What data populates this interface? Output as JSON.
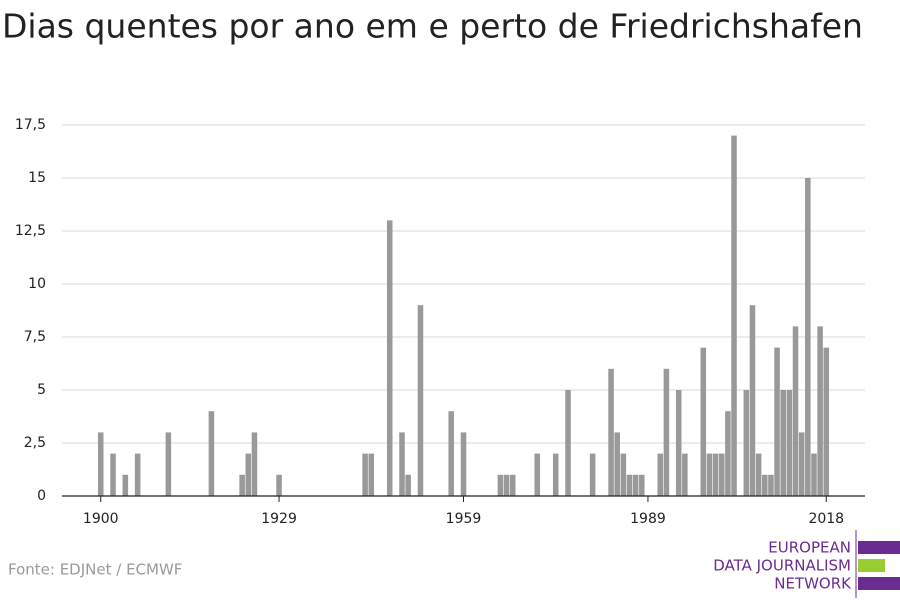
{
  "chart_data": {
    "type": "bar",
    "title": "Dias quentes por ano em e perto de Friedrichshafen",
    "source": "Fonte: EDJNet / ECMWF",
    "logo": [
      "EUROPEAN",
      "DATA JOURNALISM",
      "NETWORK"
    ],
    "color": "#999999",
    "grid": true,
    "x": [
      1900,
      1901,
      1902,
      1903,
      1904,
      1905,
      1906,
      1907,
      1908,
      1909,
      1910,
      1911,
      1912,
      1913,
      1914,
      1915,
      1916,
      1917,
      1918,
      1919,
      1920,
      1921,
      1922,
      1923,
      1924,
      1925,
      1926,
      1927,
      1928,
      1929,
      1930,
      1931,
      1932,
      1933,
      1934,
      1935,
      1936,
      1937,
      1938,
      1939,
      1940,
      1941,
      1942,
      1943,
      1944,
      1945,
      1946,
      1947,
      1948,
      1949,
      1950,
      1951,
      1952,
      1953,
      1954,
      1955,
      1956,
      1957,
      1958,
      1959,
      1960,
      1961,
      1962,
      1963,
      1964,
      1965,
      1966,
      1967,
      1968,
      1969,
      1970,
      1971,
      1972,
      1973,
      1974,
      1975,
      1976,
      1977,
      1978,
      1979,
      1980,
      1981,
      1982,
      1983,
      1984,
      1985,
      1986,
      1987,
      1988,
      1989,
      1990,
      1991,
      1992,
      1993,
      1994,
      1995,
      1996,
      1997,
      1998,
      1999,
      2000,
      2001,
      2002,
      2003,
      2004,
      2005,
      2006,
      2007,
      2008,
      2009,
      2010,
      2011,
      2012,
      2013,
      2014,
      2015,
      2016,
      2017,
      2018
    ],
    "values": [
      3,
      0,
      2,
      0,
      1,
      0,
      2,
      0,
      0,
      0,
      0,
      3,
      0,
      0,
      0,
      0,
      0,
      0,
      4,
      0,
      0,
      0,
      0,
      1,
      2,
      3,
      0,
      0,
      0,
      1,
      0,
      0,
      0,
      0,
      0,
      0,
      0,
      0,
      0,
      0,
      0,
      0,
      0,
      2,
      2,
      0,
      0,
      13,
      0,
      3,
      1,
      0,
      9,
      0,
      0,
      0,
      0,
      4,
      0,
      3,
      0,
      0,
      0,
      0,
      0,
      1,
      1,
      1,
      0,
      0,
      0,
      2,
      0,
      0,
      2,
      0,
      5,
      0,
      0,
      0,
      2,
      0,
      0,
      6,
      3,
      2,
      1,
      1,
      1,
      0,
      0,
      2,
      6,
      0,
      5,
      2,
      0,
      0,
      7,
      2,
      2,
      2,
      4,
      17,
      0,
      5,
      9,
      2,
      1,
      1,
      7,
      5,
      5,
      8,
      3,
      15,
      2,
      8,
      7
    ],
    "xlim": [
      1893.7,
      2024.3
    ],
    "xticks": [
      1900,
      1929,
      1959,
      1989,
      2018
    ],
    "ylim": [
      0,
      17.5
    ],
    "yticks": [
      0,
      {
        "value": 2.5,
        "label": "2,5"
      },
      5,
      {
        "value": 7.5,
        "label": "7,5"
      },
      10,
      {
        "value": 12.5,
        "label": "12,5"
      },
      15,
      {
        "value": 17.5,
        "label": "17,5"
      }
    ]
  }
}
